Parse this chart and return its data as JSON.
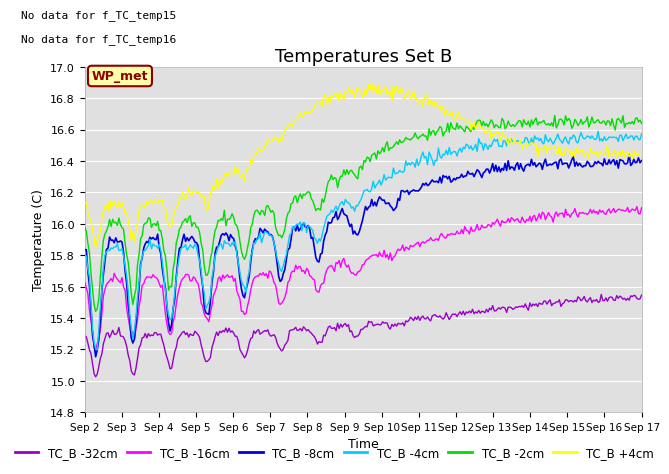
{
  "title": "Temperatures Set B",
  "xlabel": "Time",
  "ylabel": "Temperature (C)",
  "note_lines": [
    "No data for f_TC_temp15",
    "No data for f_TC_temp16"
  ],
  "wp_met_label": "WP_met",
  "ylim": [
    14.8,
    17.0
  ],
  "yticks": [
    14.8,
    15.0,
    15.2,
    15.4,
    15.6,
    15.8,
    16.0,
    16.2,
    16.4,
    16.6,
    16.8,
    17.0
  ],
  "xtick_labels": [
    "Sep 2",
    "Sep 3",
    "Sep 4",
    "Sep 5",
    "Sep 6",
    "Sep 7",
    "Sep 8",
    "Sep 9",
    "Sep 10",
    "Sep 11",
    "Sep 12",
    "Sep 13",
    "Sep 14",
    "Sep 15",
    "Sep 16",
    "Sep 17"
  ],
  "series": [
    {
      "label": "TC_B -32cm",
      "color": "#9900cc"
    },
    {
      "label": "TC_B -16cm",
      "color": "#ff00ff"
    },
    {
      "label": "TC_B -8cm",
      "color": "#0000dd"
    },
    {
      "label": "TC_B -4cm",
      "color": "#00ccff"
    },
    {
      "label": "TC_B -2cm",
      "color": "#00dd00"
    },
    {
      "label": "TC_B +4cm",
      "color": "#ffff00"
    }
  ],
  "plot_bg_color": "#e0e0e0",
  "grid_color": "#ffffff",
  "title_fontsize": 13,
  "axis_fontsize": 9,
  "tick_fontsize": 8,
  "legend_fontsize": 8.5,
  "note_fontsize": 8,
  "wp_fontsize": 9
}
